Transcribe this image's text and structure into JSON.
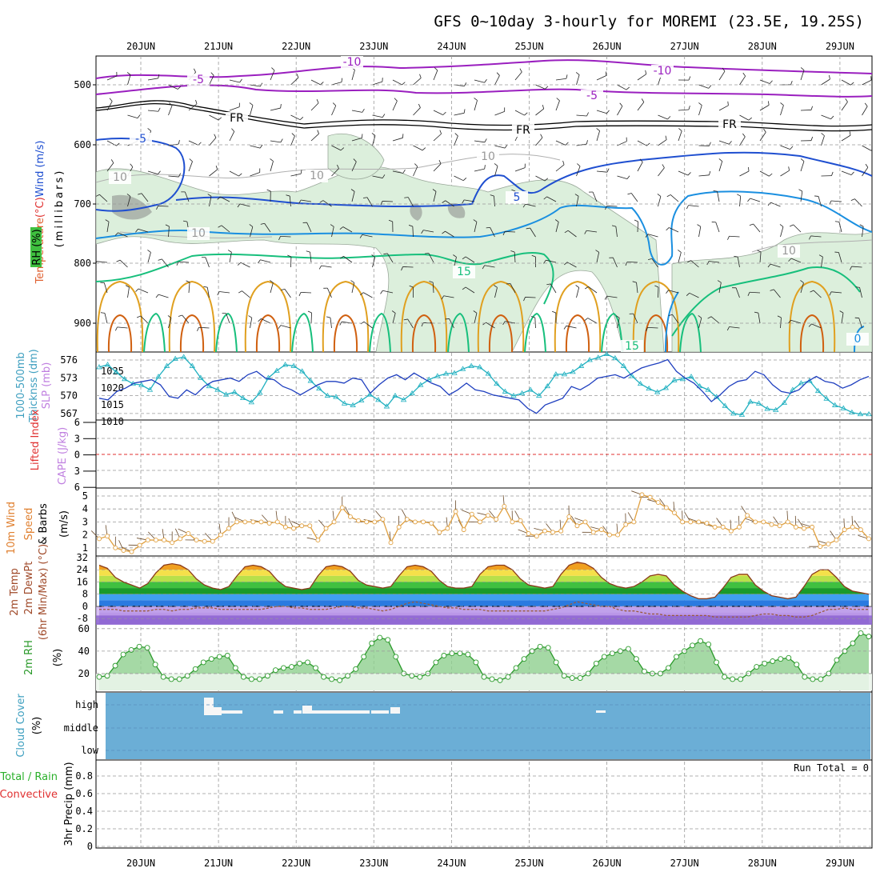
{
  "title": "GFS 0~10day 3-hourly for MOREMI (23.5E, 19.25S)",
  "colors": {
    "purple": "#9a1fbf",
    "black": "#000000",
    "blue": "#1f4fd0",
    "ltblue": "#1a8fe0",
    "green": "#17bf7c",
    "orange": "#e0a020",
    "rust": "#d06010",
    "rh_fill": "#dcefdc",
    "slp": "#1f3fbf",
    "thick": "#20b0c0",
    "wind": "#e0a040",
    "cloud": "#6baed6",
    "temp_line": "#8a3a1a",
    "dewpt": "#9a5a3a",
    "rh2m_line": "#2a9a2a",
    "rh2m_fill": "#8fd08f",
    "red": "#e03030",
    "violet": "#c080e0",
    "cyan": "#40a0c0",
    "grid": "#999999"
  },
  "chart_data": [
    {
      "type": "line",
      "panel": "upper_air",
      "x": [
        "20JUN",
        "21JUN",
        "22JUN",
        "23JUN",
        "24JUN",
        "25JUN",
        "26JUN",
        "27JUN",
        "28JUN",
        "29JUN"
      ],
      "yticks": [
        "500",
        "600",
        "700",
        "800",
        "900"
      ],
      "ylabel_parts": [
        "Temperature",
        "(°C)",
        "Wind",
        "(m/s)"
      ],
      "ylabel_mb": "(millibars)",
      "rh_label": "RH (%)",
      "contour_labels": [
        {
          "text": "-10",
          "series": "purple"
        },
        {
          "text": "-10",
          "series": "purple"
        },
        {
          "text": "-5",
          "series": "purple"
        },
        {
          "text": "-5",
          "series": "purple"
        },
        {
          "text": "FR",
          "series": "black"
        },
        {
          "text": "FR",
          "series": "black"
        },
        {
          "text": "FR",
          "series": "black"
        },
        {
          "text": "-5",
          "series": "blue"
        },
        {
          "text": "5",
          "series": "blue"
        },
        {
          "text": "10",
          "series": "gray"
        },
        {
          "text": "10",
          "series": "gray"
        },
        {
          "text": "10",
          "series": "gray"
        },
        {
          "text": "10",
          "series": "gray"
        },
        {
          "text": "10",
          "series": "gray"
        },
        {
          "text": "15",
          "series": "green"
        },
        {
          "text": "15",
          "series": "green"
        },
        {
          "text": "0",
          "series": "ltblue"
        }
      ]
    },
    {
      "type": "line",
      "panel": "slp_thickness",
      "ylabel": "1000-500mb Thicknss (dm)",
      "ylabel_right": "SLP (mb)",
      "left_ticks": [
        "576",
        "573",
        "570",
        "567"
      ],
      "right_ticks": [
        "1025",
        "1020",
        "1015",
        "1010"
      ],
      "series": [
        {
          "name": "SLP",
          "values": [
            1016.0,
            1015.5,
            1018.0,
            1019.0,
            1020.5,
            1021.0,
            1021.5,
            1020.0,
            1016.5,
            1016.0,
            1018.5,
            1017.0,
            1019.5,
            1021.0,
            1021.5,
            1022.0,
            1021.0,
            1023.0,
            1024.0,
            1022.0,
            1021.5,
            1019.5,
            1018.5,
            1017.0,
            1018.5,
            1020.0,
            1021.0,
            1021.0,
            1020.5,
            1022.0,
            1021.5,
            1017.5,
            1020.0,
            1022.0,
            1023.0,
            1021.5,
            1023.5,
            1022.0,
            1020.5,
            1019.5,
            1017.0,
            1018.5,
            1020.5,
            1018.5,
            1018.0,
            1017.0,
            1016.5,
            1016.0,
            1015.5,
            1013.0,
            1011.5,
            1014.0,
            1015.0,
            1016.0,
            1019.5,
            1018.5,
            1020.0,
            1022.0,
            1022.5,
            1023.0,
            1022.0,
            1023.5,
            1025.0,
            1025.8,
            1026.5,
            1027.5,
            1024.0,
            1022.0,
            1020.5,
            1018.0,
            1015.0,
            1017.0,
            1019.5,
            1021.0,
            1021.5,
            1024.0,
            1023.0,
            1020.0,
            1018.0,
            1017.5,
            1018.5,
            1021.0,
            1022.5,
            1021.0,
            1020.5,
            1019.0,
            1020.0,
            1021.5,
            1022.5
          ]
        },
        {
          "name": "Thickness",
          "values": [
            574.8,
            575.2,
            574.0,
            572.8,
            572.0,
            571.8,
            571.0,
            573.2,
            575.0,
            576.2,
            576.5,
            575.0,
            573.0,
            571.6,
            571.0,
            570.2,
            570.6,
            569.6,
            568.9,
            570.5,
            573.0,
            574.2,
            575.2,
            575.0,
            574.1,
            572.5,
            571.2,
            570.0,
            569.8,
            568.7,
            568.4,
            569.2,
            570.2,
            569.3,
            568.2,
            570.0,
            569.3,
            570.4,
            571.8,
            572.7,
            573.3,
            573.7,
            573.8,
            574.5,
            575.0,
            574.8,
            573.7,
            572.0,
            570.7,
            570.0,
            570.4,
            571.0,
            570.0,
            571.6,
            573.6,
            573.6,
            574.0,
            575.0,
            576.0,
            576.4,
            577.0,
            576.3,
            575.0,
            573.3,
            572.0,
            571.2,
            570.6,
            571.3,
            572.6,
            572.8,
            573.2,
            571.6,
            571.0,
            569.8,
            568.3,
            567.0,
            566.8,
            569.0,
            568.7,
            567.8,
            567.6,
            568.8,
            571.0,
            572.1,
            572.5,
            570.8,
            569.5,
            568.4,
            567.9,
            567.2,
            566.9,
            566.9
          ]
        }
      ]
    },
    {
      "type": "line",
      "panel": "lifted_cape",
      "ylabel_left": "Lifted Index",
      "ylabel_right": "CAPE (J/kg)",
      "yticks": [
        "6",
        "3",
        "0",
        "3",
        "6"
      ],
      "ylim": [
        -6,
        6
      ]
    },
    {
      "type": "line",
      "panel": "wind10m",
      "ylabel": "10m Wind Speed (m/s) & Barbs",
      "ylabel_parts": [
        "10m Wind",
        "Speed",
        "& Barbs",
        "(m/s)"
      ],
      "yticks": [
        "5",
        "4",
        "3",
        "2",
        "1"
      ],
      "ylim": [
        0.5,
        5.5
      ],
      "series": [
        {
          "name": "Speed",
          "values": [
            1.7,
            1.9,
            1.0,
            0.8,
            0.7,
            1.2,
            1.6,
            1.6,
            1.6,
            1.4,
            1.7,
            2.1,
            1.6,
            1.5,
            1.5,
            2.0,
            2.5,
            3.0,
            3.0,
            3.0,
            3.0,
            2.9,
            3.0,
            2.6,
            2.5,
            2.7,
            2.7,
            1.6,
            2.5,
            3.0,
            4.1,
            3.4,
            3.1,
            3.0,
            3.0,
            3.2,
            1.4,
            2.6,
            3.2,
            3.0,
            3.0,
            2.9,
            2.2,
            2.5,
            3.8,
            2.4,
            3.6,
            3.0,
            3.5,
            3.2,
            4.2,
            3.0,
            3.1,
            2.1,
            1.9,
            2.3,
            2.2,
            2.3,
            3.4,
            2.7,
            3.0,
            2.2,
            2.4,
            2.0,
            2.0,
            2.8,
            3.0,
            5.1,
            4.9,
            4.5,
            4.1,
            3.7,
            3.0,
            3.0,
            3.0,
            2.9,
            2.6,
            2.6,
            2.3,
            2.6,
            3.5,
            3.0,
            3.0,
            2.8,
            2.7,
            3.0,
            2.6,
            2.5,
            2.6,
            1.1,
            1.3,
            1.6,
            2.4,
            2.6,
            2.4,
            1.7
          ]
        }
      ]
    },
    {
      "type": "area",
      "panel": "temp2m",
      "ylabel_parts": [
        "2m Temp",
        "2m DewPt",
        "(6hr Min/Max) (°C)"
      ],
      "yticks": [
        "32",
        "24",
        "16",
        "8",
        "0",
        "-8"
      ],
      "ylim": [
        -12,
        32
      ],
      "series": [
        {
          "name": "2m Temp",
          "values": [
            27,
            25,
            19,
            16,
            14,
            12,
            15,
            22,
            27,
            28,
            27,
            24,
            18,
            14,
            12,
            11,
            13,
            20,
            26,
            27,
            26,
            23,
            17,
            13,
            12,
            11,
            12,
            20,
            26,
            27,
            26,
            23,
            17,
            14,
            13,
            12,
            13,
            20,
            26,
            27,
            26,
            23,
            17,
            13,
            12,
            12,
            13,
            21,
            26,
            27,
            27,
            24,
            18,
            14,
            13,
            12,
            13,
            21,
            27,
            29,
            28,
            25,
            19,
            15,
            13,
            12,
            13,
            16,
            20,
            21,
            20,
            14,
            10,
            7,
            5,
            5,
            6,
            12,
            19,
            21,
            21,
            14,
            10,
            7,
            6,
            5,
            6,
            13,
            21,
            24,
            24,
            19,
            13,
            10,
            9,
            8
          ]
        },
        {
          "name": "2m DewPt",
          "values": [
            -2,
            -2,
            -2,
            -3,
            -3,
            -3,
            -3,
            -2,
            -2,
            -3,
            -2,
            -2,
            -1,
            -1,
            -1,
            -2,
            -2,
            -2,
            -2,
            -2,
            -2,
            -1,
            0,
            0,
            -1,
            -1,
            -2,
            -2,
            -2,
            -1,
            0,
            0,
            -1,
            -1,
            -2,
            -3,
            -2,
            0,
            2,
            3,
            2,
            1,
            0,
            -1,
            -1,
            -2,
            -2,
            -2,
            -3,
            -3,
            -3,
            -3,
            -3,
            -3,
            -3,
            -3,
            -2,
            -1,
            1,
            3,
            2,
            1,
            0,
            0,
            -2,
            -3,
            -3,
            -4,
            -5,
            -5,
            -6,
            -6,
            -6,
            -6,
            -6,
            -6,
            -7,
            -7,
            -7,
            -7,
            -7,
            -6,
            -5,
            -5,
            -6,
            -6,
            -7,
            -7,
            -6,
            -4,
            -2,
            -2,
            -1,
            -2,
            -2,
            -2
          ]
        }
      ]
    },
    {
      "type": "area",
      "panel": "rh2m",
      "ylabel": "2m RH (%)",
      "yticks": [
        "60",
        "40",
        "20"
      ],
      "ylim": [
        5,
        62
      ],
      "series": [
        {
          "name": "2m RH",
          "values": [
            17,
            18,
            27,
            37,
            41,
            44,
            43,
            28,
            17,
            15,
            15,
            18,
            24,
            30,
            33,
            35,
            36,
            25,
            17,
            15,
            15,
            18,
            23,
            25,
            26,
            29,
            30,
            25,
            17,
            15,
            14,
            18,
            24,
            35,
            47,
            52,
            50,
            35,
            20,
            18,
            17,
            20,
            30,
            36,
            38,
            38,
            37,
            30,
            17,
            15,
            14,
            17,
            25,
            33,
            40,
            44,
            43,
            30,
            18,
            16,
            16,
            20,
            29,
            35,
            38,
            40,
            42,
            33,
            22,
            20,
            20,
            25,
            35,
            40,
            45,
            49,
            46,
            30,
            17,
            15,
            15,
            20,
            26,
            29,
            31,
            33,
            34,
            28,
            17,
            15,
            15,
            20,
            32,
            40,
            47,
            56,
            53
          ]
        }
      ]
    },
    {
      "type": "bar",
      "panel": "cloud",
      "ylabel": "Cloud Cover (%)",
      "yticks": [
        "high",
        "middle",
        "low"
      ]
    },
    {
      "type": "bar",
      "panel": "precip",
      "ylabel_parts": [
        "Total / Rain",
        "Convective",
        "3hr Precip (mm)"
      ],
      "yticks": [
        "0.8",
        "0.6",
        "0.4",
        "0.2",
        "0"
      ],
      "ylim": [
        0,
        1
      ],
      "run_total": "Run Total = 0"
    }
  ]
}
